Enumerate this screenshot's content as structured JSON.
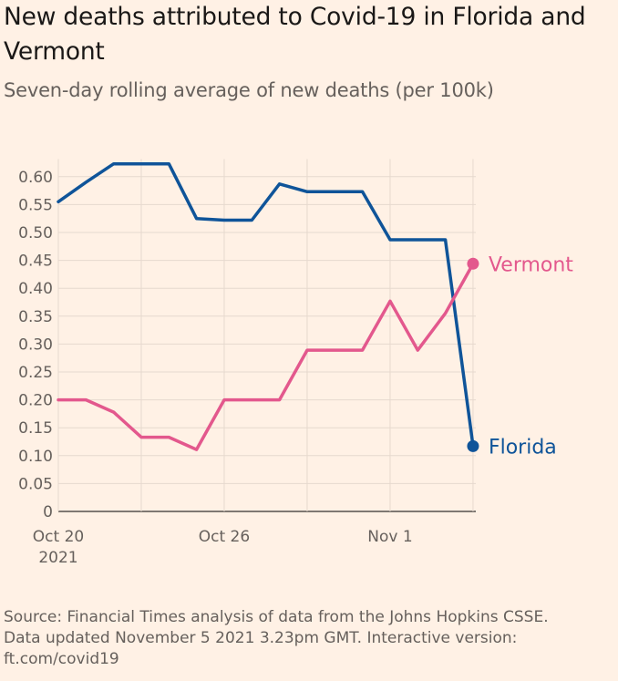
{
  "title": "New deaths attributed to Covid-19 in Florida and Vermont",
  "subtitle": "Seven-day rolling average of new deaths (per 100k)",
  "source": "Source: Financial Times analysis of data from the Johns Hopkins CSSE. Data updated November 5 2021 3.23pm GMT. Interactive version: ft.com/covid19",
  "colors": {
    "background": "#fff1e5",
    "florida": "#0f5499",
    "vermont": "#e3588d",
    "grid": "#e6d9ce",
    "text": "#66605c"
  },
  "chart_data": {
    "type": "line",
    "x": [
      "2021-10-20",
      "2021-10-21",
      "2021-10-22",
      "2021-10-23",
      "2021-10-24",
      "2021-10-25",
      "2021-10-26",
      "2021-10-27",
      "2021-10-28",
      "2021-10-29",
      "2021-10-30",
      "2021-10-31",
      "2021-11-01",
      "2021-11-02",
      "2021-11-03",
      "2021-11-04"
    ],
    "series": [
      {
        "name": "Florida",
        "color": "#0f5499",
        "values": [
          0.555,
          0.59,
          0.623,
          0.623,
          0.623,
          0.525,
          0.522,
          0.522,
          0.587,
          0.573,
          0.573,
          0.573,
          0.487,
          0.487,
          0.487,
          0.117
        ]
      },
      {
        "name": "Vermont",
        "color": "#e3588d",
        "values": [
          0.2,
          0.2,
          0.178,
          0.133,
          0.133,
          0.111,
          0.2,
          0.2,
          0.2,
          0.289,
          0.289,
          0.289,
          0.377,
          0.289,
          0.355,
          0.444
        ]
      }
    ],
    "xticks": [
      {
        "index": 0,
        "label": "Oct 20",
        "sublabel": "2021"
      },
      {
        "index": 6,
        "label": "Oct 26",
        "sublabel": ""
      },
      {
        "index": 12,
        "label": "Nov 1",
        "sublabel": ""
      }
    ],
    "yticks": [
      {
        "value": 0.6,
        "label": "0.60"
      },
      {
        "value": 0.55,
        "label": "0.55"
      },
      {
        "value": 0.5,
        "label": "0.50"
      },
      {
        "value": 0.45,
        "label": "0.45"
      },
      {
        "value": 0.4,
        "label": "0.40"
      },
      {
        "value": 0.35,
        "label": "0.35"
      },
      {
        "value": 0.3,
        "label": "0.30"
      },
      {
        "value": 0.25,
        "label": "0.25"
      },
      {
        "value": 0.2,
        "label": "0.20"
      },
      {
        "value": 0.15,
        "label": "0.15"
      },
      {
        "value": 0.1,
        "label": "0.10"
      },
      {
        "value": 0.05,
        "label": "0.05"
      },
      {
        "value": 0,
        "label": "0"
      }
    ],
    "ylim": [
      0,
      0.625
    ],
    "grid": true,
    "legend": "inline at line ends"
  }
}
